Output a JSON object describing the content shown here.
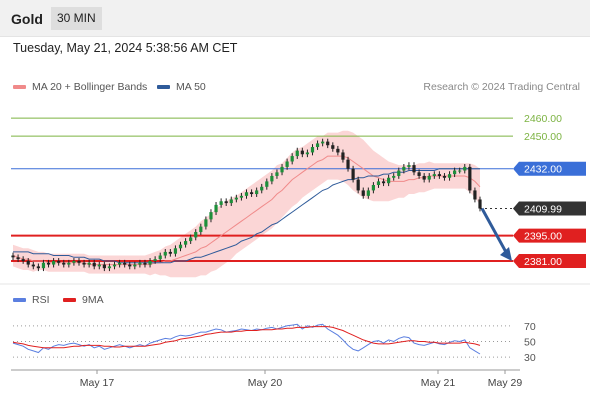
{
  "header": {
    "symbol": "Gold",
    "timeframe": "30 MIN"
  },
  "timestamp": "Tuesday, May 21, 2024 5:38:56 AM CET",
  "credit": "Research © 2024 Trading Central",
  "legend_main": [
    {
      "label": "MA 20 + Bollinger Bands",
      "color": "#f08a8a"
    },
    {
      "label": "MA 50",
      "color": "#2f5b9a"
    }
  ],
  "legend_rsi": [
    {
      "label": "RSI",
      "color": "#5b7fe0"
    },
    {
      "label": "9MA",
      "color": "#e02020"
    }
  ],
  "chart_data": {
    "type": "candlestick",
    "x_labels": [
      "May 17",
      "May 20",
      "May 21",
      "May 29"
    ],
    "ylim": [
      2376,
      2470
    ],
    "levels": [
      {
        "value": 2460.0,
        "label": "2460.00",
        "color": "#7cb342",
        "kind": "resistance"
      },
      {
        "value": 2450.0,
        "label": "2450.00",
        "color": "#7cb342",
        "kind": "resistance"
      },
      {
        "value": 2432.0,
        "label": "2432.00",
        "color": "#3a6fd8",
        "kind": "pivot"
      },
      {
        "value": 2409.99,
        "label": "2409.99",
        "color": "#333333",
        "kind": "last"
      },
      {
        "value": 2395.0,
        "label": "2395.00",
        "color": "#e02020",
        "kind": "support"
      },
      {
        "value": 2381.0,
        "label": "2381.00",
        "color": "#e02020",
        "kind": "support"
      }
    ],
    "close": [
      2383,
      2382,
      2381,
      2379,
      2378,
      2377,
      2380,
      2379,
      2381,
      2380,
      2379,
      2380,
      2381,
      2380,
      2379,
      2380,
      2378,
      2379,
      2377,
      2378,
      2379,
      2380,
      2379,
      2378,
      2379,
      2380,
      2379,
      2381,
      2382,
      2384,
      2386,
      2385,
      2388,
      2390,
      2392,
      2394,
      2397,
      2400,
      2404,
      2408,
      2412,
      2414,
      2413,
      2415,
      2416,
      2417,
      2419,
      2418,
      2420,
      2422,
      2425,
      2428,
      2430,
      2433,
      2436,
      2439,
      2442,
      2440,
      2441,
      2444,
      2446,
      2447,
      2445,
      2443,
      2441,
      2437,
      2432,
      2426,
      2420,
      2417,
      2420,
      2423,
      2425,
      2424,
      2427,
      2428,
      2431,
      2433,
      2434,
      2430,
      2428,
      2426,
      2428,
      2429,
      2428,
      2427,
      2429,
      2431,
      2431,
      2433,
      2420,
      2415,
      2410
    ],
    "ma20": [
      2384,
      2383,
      2382,
      2382,
      2381,
      2381,
      2381,
      2380,
      2380,
      2380,
      2380,
      2380,
      2380,
      2380,
      2380,
      2379,
      2379,
      2379,
      2379,
      2379,
      2379,
      2379,
      2379,
      2379,
      2379,
      2379,
      2379,
      2379,
      2380,
      2380,
      2381,
      2381,
      2382,
      2383,
      2384,
      2385,
      2386,
      2388,
      2389,
      2391,
      2393,
      2395,
      2397,
      2399,
      2401,
      2403,
      2405,
      2407,
      2409,
      2411,
      2413,
      2415,
      2418,
      2420,
      2423,
      2426,
      2428,
      2430,
      2432,
      2434,
      2436,
      2437,
      2439,
      2439,
      2439,
      2439,
      2438,
      2436,
      2434,
      2432,
      2430,
      2428,
      2427,
      2426,
      2425,
      2425,
      2425,
      2425,
      2426,
      2426,
      2427,
      2427,
      2428,
      2428,
      2428,
      2428,
      2428,
      2428,
      2428,
      2428,
      2427,
      2425,
      2422
    ],
    "ma50": [
      2386,
      2386,
      2386,
      2386,
      2385,
      2385,
      2385,
      2385,
      2384,
      2384,
      2384,
      2384,
      2383,
      2383,
      2383,
      2382,
      2382,
      2382,
      2381,
      2381,
      2381,
      2380,
      2380,
      2380,
      2380,
      2380,
      2380,
      2380,
      2380,
      2380,
      2380,
      2380,
      2381,
      2381,
      2381,
      2382,
      2383,
      2383,
      2384,
      2385,
      2386,
      2387,
      2388,
      2389,
      2390,
      2392,
      2393,
      2394,
      2396,
      2397,
      2399,
      2401,
      2402,
      2404,
      2406,
      2408,
      2410,
      2412,
      2414,
      2416,
      2418,
      2420,
      2421,
      2423,
      2424,
      2425,
      2426,
      2426,
      2427,
      2427,
      2428,
      2428,
      2428,
      2429,
      2429,
      2430,
      2430,
      2430,
      2431,
      2431,
      2431,
      2431,
      2431,
      2431,
      2432,
      2432,
      2432,
      2432,
      2432,
      2432,
      2432,
      2432,
      2432
    ],
    "bb_width": [
      6,
      6,
      6,
      6,
      6,
      5,
      5,
      5,
      5,
      5,
      5,
      5,
      5,
      5,
      5,
      5,
      5,
      5,
      5,
      5,
      5,
      5,
      5,
      5,
      5,
      5,
      5,
      6,
      6,
      7,
      8,
      9,
      10,
      11,
      12,
      13,
      14,
      15,
      16,
      16,
      17,
      17,
      17,
      17,
      16,
      16,
      16,
      16,
      16,
      16,
      16,
      16,
      16,
      15,
      15,
      15,
      15,
      14,
      14,
      14,
      14,
      13,
      13,
      13,
      13,
      14,
      15,
      16,
      16,
      16,
      15,
      14,
      13,
      12,
      11,
      10,
      9,
      9,
      8,
      8,
      8,
      8,
      8,
      7,
      7,
      7,
      7,
      7,
      7,
      7,
      8,
      9,
      10
    ],
    "forecast": {
      "from": 2409.99,
      "to": 2381.0
    },
    "rsi_panel": {
      "ylim": [
        20,
        80
      ],
      "ticks": [
        70,
        50,
        30
      ],
      "rsi": [
        48,
        46,
        44,
        40,
        38,
        36,
        42,
        40,
        44,
        46,
        45,
        47,
        48,
        46,
        44,
        46,
        42,
        44,
        40,
        42,
        44,
        46,
        44,
        42,
        44,
        46,
        44,
        48,
        50,
        52,
        54,
        53,
        56,
        58,
        57,
        58,
        60,
        62,
        62,
        64,
        66,
        65,
        62,
        63,
        64,
        66,
        65,
        64,
        66,
        65,
        67,
        68,
        66,
        68,
        70,
        71,
        72,
        66,
        70,
        68,
        71,
        72,
        66,
        62,
        58,
        52,
        45,
        40,
        38,
        42,
        46,
        50,
        51,
        48,
        52,
        50,
        54,
        56,
        55,
        48,
        46,
        45,
        47,
        49,
        47,
        46,
        49,
        51,
        50,
        52,
        42,
        38,
        34
      ],
      "ma9": [
        49,
        48,
        47,
        45,
        44,
        43,
        42,
        42,
        42,
        42,
        42,
        43,
        44,
        44,
        45,
        45,
        45,
        45,
        44,
        44,
        43,
        43,
        44,
        44,
        44,
        44,
        44,
        45,
        46,
        47,
        49,
        50,
        51,
        53,
        54,
        55,
        56,
        57,
        59,
        60,
        61,
        62,
        62,
        62,
        63,
        63,
        64,
        64,
        64,
        65,
        65,
        65,
        66,
        66,
        67,
        67,
        68,
        68,
        68,
        69,
        69,
        69,
        69,
        68,
        66,
        64,
        61,
        58,
        55,
        52,
        50,
        48,
        47,
        47,
        47,
        48,
        49,
        50,
        51,
        51,
        50,
        50,
        49,
        49,
        48,
        48,
        48,
        48,
        48,
        49,
        48,
        47,
        45
      ]
    }
  }
}
